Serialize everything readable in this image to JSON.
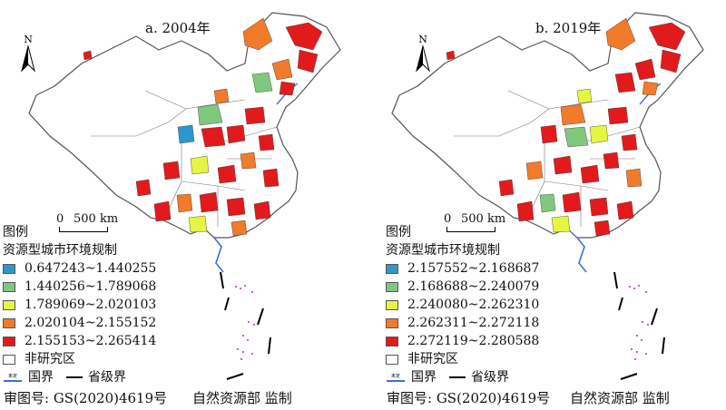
{
  "panels": [
    {
      "title": "a. 2004年",
      "classes": [
        {
          "label": "0.647243~1.440255",
          "color": "#2e96cf"
        },
        {
          "label": "1.440256~1.789068",
          "color": "#7fc97f"
        },
        {
          "label": "1.789069~2.020103",
          "color": "#e6f542"
        },
        {
          "label": "2.020104~2.155152",
          "color": "#f07b2b"
        },
        {
          "label": "2.155153~2.265414",
          "color": "#e31a1c"
        }
      ]
    },
    {
      "title": "b. 2019年",
      "classes": [
        {
          "label": "2.157552~2.168687",
          "color": "#2e96cf"
        },
        {
          "label": "2.168688~2.240079",
          "color": "#7fc97f"
        },
        {
          "label": "2.240080~2.262310",
          "color": "#e6f542"
        },
        {
          "label": "2.262311~2.272118",
          "color": "#f07b2b"
        },
        {
          "label": "2.272119~2.280588",
          "color": "#e31a1c"
        }
      ]
    }
  ],
  "common": {
    "north": "N",
    "scale_zero": "0",
    "scale_label": "500 km",
    "legend_title": "图例",
    "legend_subtitle": "资源型城市环境规制",
    "non_study": "非研究区",
    "national_boundary": "国界",
    "provincial_boundary": "省级界",
    "audit_number": "审图号: GS(2020)4619号",
    "publisher": "自然资源部  监制",
    "sea_color": "#3b6fe0",
    "island_color": "#c026c9"
  }
}
